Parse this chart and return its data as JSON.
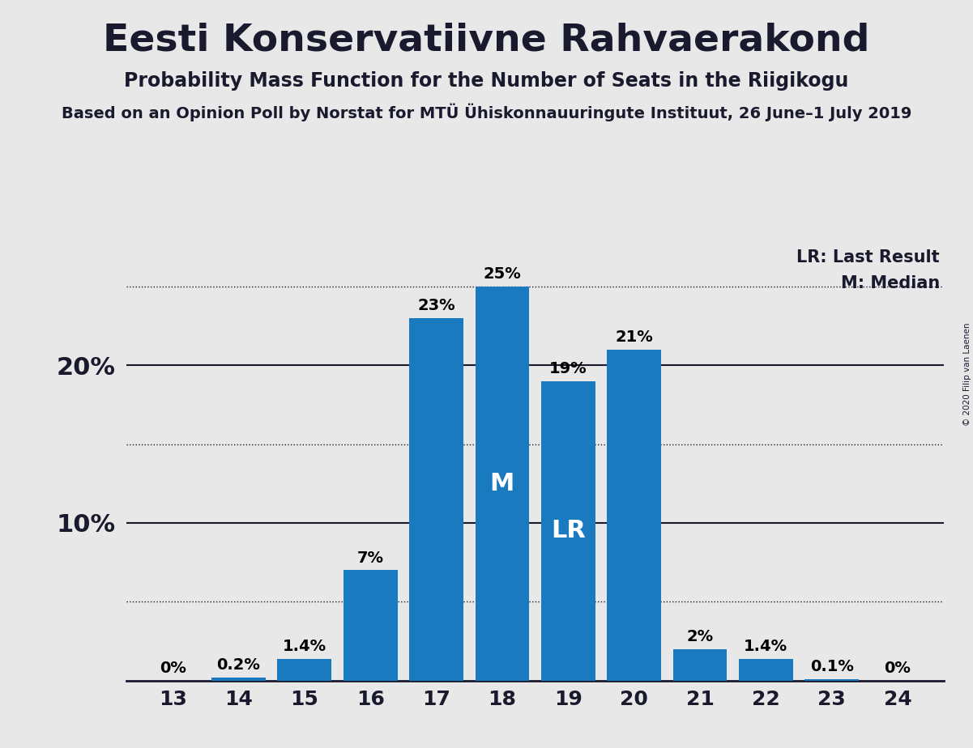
{
  "title": "Eesti Konservatiivne Rahvaerakond",
  "subtitle": "Probability Mass Function for the Number of Seats in the Riigikogu",
  "source_line": "Based on an Opinion Poll by Norstat for MTÜ Ühiskonnauuringute Instituut, 26 June–1 July 2019",
  "copyright": "© 2020 Filip van Laenen",
  "seats": [
    13,
    14,
    15,
    16,
    17,
    18,
    19,
    20,
    21,
    22,
    23,
    24
  ],
  "probabilities": [
    0.0,
    0.2,
    1.4,
    7.0,
    23.0,
    25.0,
    19.0,
    21.0,
    2.0,
    1.4,
    0.1,
    0.0
  ],
  "bar_labels": [
    "0%",
    "0.2%",
    "1.4%",
    "7%",
    "23%",
    "25%",
    "19%",
    "21%",
    "2%",
    "1.4%",
    "0.1%",
    "0%"
  ],
  "bar_color": "#1a7abf",
  "median_seat": 18,
  "last_result_seat": 19,
  "median_label": "M",
  "last_result_label": "LR",
  "legend_lr": "LR: Last Result",
  "legend_m": "M: Median",
  "background_color": "#e8e8e8",
  "ylim": [
    0,
    27.5
  ],
  "solid_yticks": [
    10,
    20
  ],
  "dotted_yticks": [
    5,
    15,
    25
  ],
  "title_fontsize": 34,
  "subtitle_fontsize": 17,
  "source_fontsize": 14,
  "bar_label_fontsize": 14,
  "axis_tick_fontsize": 18,
  "ytick_fontsize": 22,
  "inbar_label_fontsize": 22,
  "legend_fontsize": 15
}
